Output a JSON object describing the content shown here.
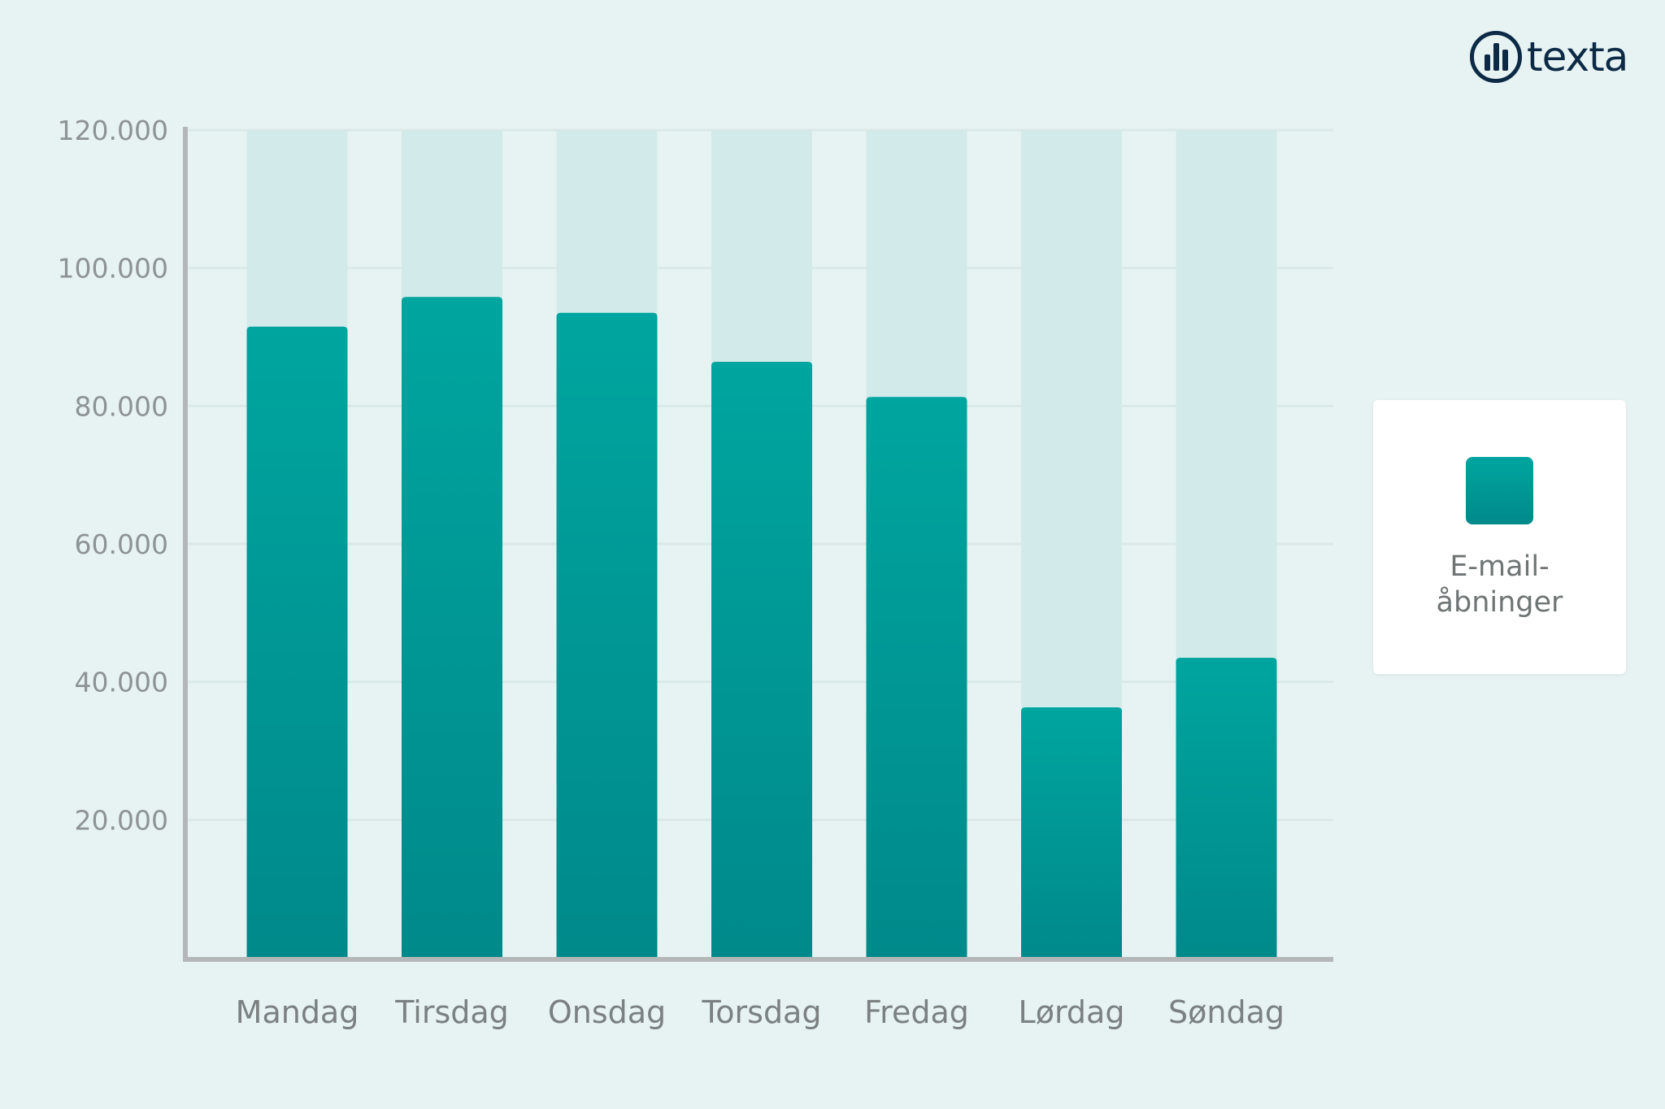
{
  "logo": {
    "text": "texta"
  },
  "legend": {
    "label": "E-mail-åbninger",
    "color": "#00a09b"
  },
  "colors": {
    "bar_top": "#00a59f",
    "bar_bottom": "#00898a",
    "track": "#d3eaea",
    "grid": "#dbe8e8",
    "axis": "#b4b7b7",
    "background": "#e7f3f3"
  },
  "chart_data": {
    "type": "bar",
    "title": "",
    "xlabel": "",
    "ylabel": "",
    "categories": [
      "Mandag",
      "Tirsdag",
      "Onsdag",
      "Torsdag",
      "Fredag",
      "Lørdag",
      "Søndag"
    ],
    "series": [
      {
        "name": "E-mail-åbninger",
        "values": [
          91500,
          95800,
          93500,
          86400,
          81300,
          36300,
          43500
        ]
      }
    ],
    "ylim": [
      0,
      120000
    ],
    "yticks": [
      20000,
      40000,
      60000,
      80000,
      100000,
      120000
    ],
    "ytick_labels": [
      "20.000",
      "40.000",
      "60.000",
      "80.000",
      "100.000",
      "120.000"
    ],
    "grid": true,
    "legend_position": "right"
  }
}
